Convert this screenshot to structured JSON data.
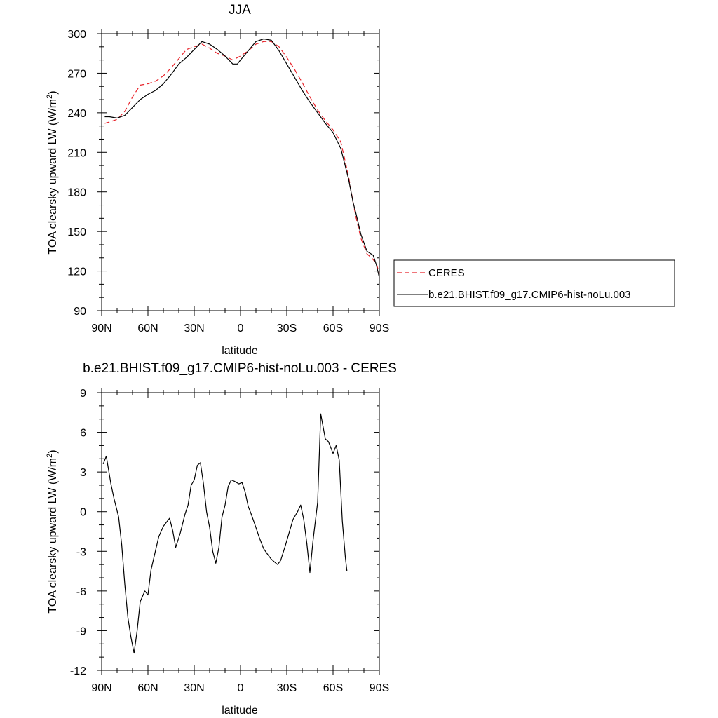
{
  "chart_data": [
    {
      "type": "line",
      "title": "JJA",
      "xlabel": "latitude",
      "ylabel": "TOA clearsky upward LW (W/m",
      "ylabel_sup": "2",
      "ylabel_end": ")",
      "xlim": [
        90,
        -90
      ],
      "ylim": [
        90,
        300
      ],
      "x_ticks": [
        90,
        60,
        30,
        0,
        -30,
        -60,
        -90
      ],
      "x_tick_labels": [
        "90N",
        "60N",
        "30N",
        "0",
        "30S",
        "60S",
        "90S"
      ],
      "y_ticks": [
        90,
        120,
        150,
        180,
        210,
        240,
        270,
        300
      ],
      "y_tick_labels": [
        "90",
        "120",
        "150",
        "180",
        "210",
        "240",
        "270",
        "300"
      ],
      "legend": {
        "placement": "right",
        "entries": [
          "CERES",
          "b.e21.BHIST.f09_g17.CMIP6-hist-noLu.003"
        ]
      },
      "series": [
        {
          "name": "CERES",
          "color": "#e8232a",
          "dash": "dashed",
          "points": [
            [
              88,
              232
            ],
            [
              85,
              233
            ],
            [
              80,
              235
            ],
            [
              75,
              241
            ],
            [
              70,
              252
            ],
            [
              65,
              261
            ],
            [
              60,
              262
            ],
            [
              55,
              264
            ],
            [
              50,
              268
            ],
            [
              45,
              274
            ],
            [
              40,
              281
            ],
            [
              35,
              288
            ],
            [
              30,
              290
            ],
            [
              25,
              292
            ],
            [
              20,
              289
            ],
            [
              15,
              285
            ],
            [
              10,
              283
            ],
            [
              5,
              280
            ],
            [
              0,
              283
            ],
            [
              -5,
              287
            ],
            [
              -10,
              292
            ],
            [
              -15,
              294
            ],
            [
              -20,
              294
            ],
            [
              -25,
              290
            ],
            [
              -30,
              282
            ],
            [
              -35,
              273
            ],
            [
              -40,
              263
            ],
            [
              -45,
              252
            ],
            [
              -50,
              242
            ],
            [
              -55,
              234
            ],
            [
              -60,
              227
            ],
            [
              -65,
              218
            ],
            [
              -70,
              192
            ],
            [
              -73,
              172
            ],
            [
              -75,
              160
            ],
            [
              -78,
              145
            ],
            [
              -82,
              133
            ],
            [
              -85,
              130
            ],
            [
              -88,
              126
            ],
            [
              -90,
              118
            ]
          ]
        },
        {
          "name": "b.e21.BHIST.f09_g17.CMIP6-hist-noLu.003",
          "color": "#000000",
          "dash": "solid",
          "points": [
            [
              88,
              237
            ],
            [
              85,
              237
            ],
            [
              80,
              236
            ],
            [
              75,
              238
            ],
            [
              70,
              244
            ],
            [
              65,
              250
            ],
            [
              60,
              254
            ],
            [
              55,
              257
            ],
            [
              50,
              262
            ],
            [
              45,
              269
            ],
            [
              40,
              277
            ],
            [
              35,
              282
            ],
            [
              30,
              288
            ],
            [
              25,
              294
            ],
            [
              20,
              292
            ],
            [
              15,
              288
            ],
            [
              10,
              283
            ],
            [
              5,
              277
            ],
            [
              2,
              277
            ],
            [
              0,
              280
            ],
            [
              -5,
              287
            ],
            [
              -10,
              294
            ],
            [
              -15,
              296
            ],
            [
              -20,
              295
            ],
            [
              -25,
              287
            ],
            [
              -30,
              277
            ],
            [
              -35,
              267
            ],
            [
              -40,
              257
            ],
            [
              -45,
              248
            ],
            [
              -50,
              240
            ],
            [
              -55,
              232
            ],
            [
              -60,
              225
            ],
            [
              -65,
              213
            ],
            [
              -70,
              190
            ],
            [
              -73,
              172
            ],
            [
              -75,
              163
            ],
            [
              -78,
              148
            ],
            [
              -82,
              135
            ],
            [
              -86,
              132
            ],
            [
              -88,
              125
            ],
            [
              -90,
              115
            ]
          ]
        }
      ]
    },
    {
      "type": "line",
      "title": "b.e21.BHIST.f09_g17.CMIP6-hist-noLu.003 - CERES",
      "xlabel": "latitude",
      "ylabel": "TOA clearsky upward LW (W/m",
      "ylabel_sup": "2",
      "ylabel_end": ")",
      "xlim": [
        90,
        -90
      ],
      "ylim": [
        -12,
        9
      ],
      "x_ticks": [
        90,
        60,
        30,
        0,
        -30,
        -60,
        -90
      ],
      "x_tick_labels": [
        "90N",
        "60N",
        "30N",
        "0",
        "30S",
        "60S",
        "90S"
      ],
      "y_ticks": [
        -12,
        -9,
        -6,
        -3,
        0,
        3,
        6,
        9
      ],
      "y_tick_labels": [
        "-12",
        "-9",
        "-6",
        "-3",
        "0",
        "3",
        "6",
        "9"
      ],
      "series": [
        {
          "color": "#000000",
          "dash": "solid",
          "points": [
            [
              89,
              3.6
            ],
            [
              87,
              4.2
            ],
            [
              84,
              2.1
            ],
            [
              82,
              1.0
            ],
            [
              79,
              -0.4
            ],
            [
              77,
              -2.5
            ],
            [
              75,
              -5.5
            ],
            [
              73,
              -8.0
            ],
            [
              71,
              -9.5
            ],
            [
              69,
              -10.7
            ],
            [
              67,
              -9.0
            ],
            [
              65,
              -6.8
            ],
            [
              62,
              -6.0
            ],
            [
              60,
              -6.3
            ],
            [
              58,
              -4.4
            ],
            [
              55,
              -2.9
            ],
            [
              53,
              -1.9
            ],
            [
              50,
              -1.1
            ],
            [
              46,
              -0.5
            ],
            [
              44,
              -1.4
            ],
            [
              42,
              -2.7
            ],
            [
              39,
              -1.6
            ],
            [
              36,
              -0.2
            ],
            [
              34,
              0.5
            ],
            [
              32,
              2.0
            ],
            [
              30,
              2.4
            ],
            [
              28,
              3.5
            ],
            [
              26,
              3.7
            ],
            [
              24,
              2.1
            ],
            [
              22,
              0
            ],
            [
              20,
              -1.2
            ],
            [
              18,
              -3.0
            ],
            [
              16,
              -3.9
            ],
            [
              14,
              -2.7
            ],
            [
              12,
              -0.4
            ],
            [
              10,
              0.5
            ],
            [
              8,
              1.9
            ],
            [
              6,
              2.4
            ],
            [
              4,
              2.3
            ],
            [
              1,
              2.1
            ],
            [
              -1,
              2.2
            ],
            [
              -3,
              1.5
            ],
            [
              -5,
              0.4
            ],
            [
              -7,
              -0.2
            ],
            [
              -10,
              -1.2
            ],
            [
              -12,
              -1.9
            ],
            [
              -15,
              -2.8
            ],
            [
              -18,
              -3.3
            ],
            [
              -20,
              -3.6
            ],
            [
              -22,
              -3.8
            ],
            [
              -24,
              -4.0
            ],
            [
              -26,
              -3.7
            ],
            [
              -29,
              -2.6
            ],
            [
              -31,
              -1.8
            ],
            [
              -34,
              -0.6
            ],
            [
              -37,
              0
            ],
            [
              -39,
              0.5
            ],
            [
              -41,
              -0.6
            ],
            [
              -43,
              -2.4
            ],
            [
              -45,
              -4.6
            ],
            [
              -47,
              -2.2
            ],
            [
              -50,
              0.7
            ],
            [
              -52,
              7.4
            ],
            [
              -55,
              5.5
            ],
            [
              -57,
              5.3
            ],
            [
              -60,
              4.4
            ],
            [
              -62,
              5.0
            ],
            [
              -64,
              3.9
            ],
            [
              -66,
              -0.7
            ],
            [
              -68,
              -3.5
            ],
            [
              -69,
              -4.5
            ]
          ]
        }
      ]
    }
  ]
}
